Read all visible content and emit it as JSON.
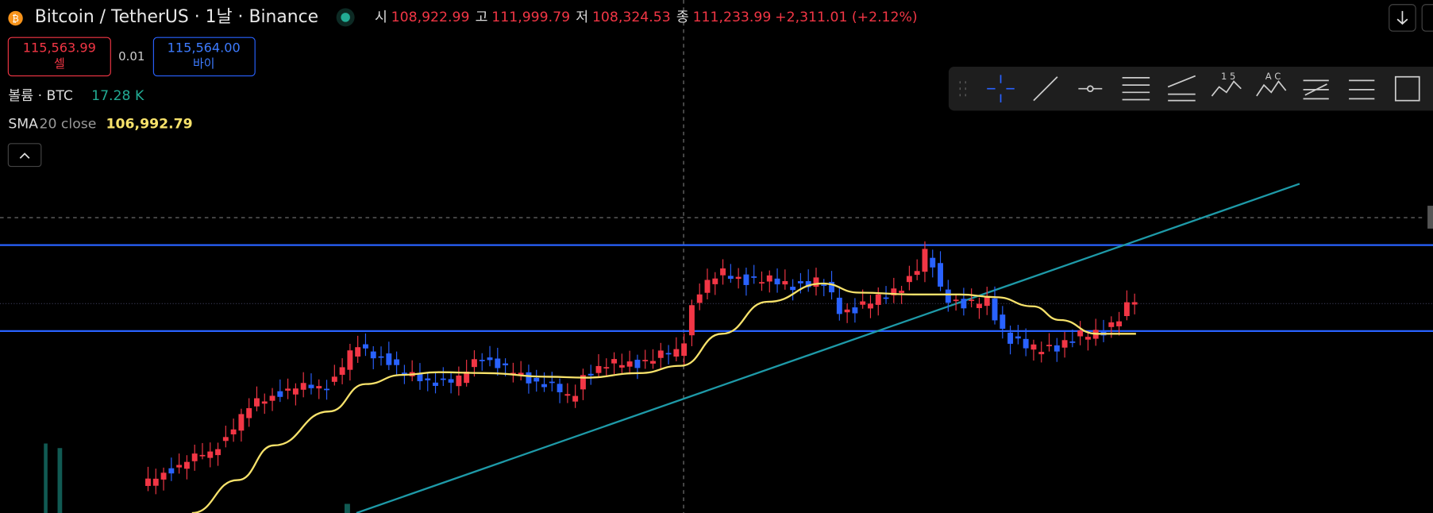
{
  "header": {
    "title": "Bitcoin / TetherUS · 1날 · Binance",
    "ohlc": [
      {
        "label": "시",
        "value": "108,922.99"
      },
      {
        "label": "고",
        "value": "111,999.79"
      },
      {
        "label": "저",
        "value": "108,324.53"
      },
      {
        "label": "종",
        "value": "111,233.99"
      }
    ],
    "change": "+2,311.01 (+2.12%)"
  },
  "trade": {
    "sell_price": "115,563.99",
    "sell_label": "셀",
    "size": "0.01",
    "buy_price": "115,564.00",
    "buy_label": "바이"
  },
  "volume": {
    "label": "볼륨 · BTC",
    "value": "17.28 K"
  },
  "sma": {
    "name": "SMA",
    "params": "20 close",
    "value": "106,992.79"
  },
  "toolbar": {
    "fib_label": "1 5",
    "pattern_label": "A C"
  }
}
